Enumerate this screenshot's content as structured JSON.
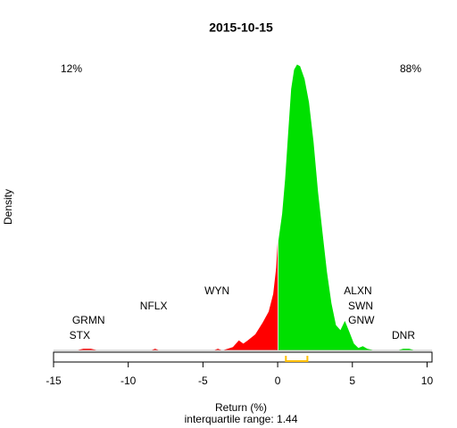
{
  "chart_data": {
    "type": "density",
    "title": "2015-10-15",
    "xlabel": "Return (%)",
    "ylabel": "Density",
    "subtitle": "interquartile range: 1.44",
    "xlim": [
      -15,
      10.33
    ],
    "ylim": [
      0,
      0.35
    ],
    "xticks": [
      -15,
      -10,
      -5,
      0,
      5,
      10
    ],
    "corner_labels": [
      {
        "text": "12%",
        "color": "#ff0000"
      },
      {
        "text": "88%",
        "color": "#009900"
      }
    ],
    "series": [
      {
        "color": "#ff0000",
        "x": [
          -15,
          -13.5,
          -13,
          -12.5,
          -12,
          -8.5,
          -8.2,
          -7.9,
          -4.3,
          -4,
          -3.7,
          -3,
          -2.6,
          -2.3,
          -2,
          -1.5,
          -1,
          -0.6,
          -0.3,
          -0.1,
          0
        ],
        "values": [
          0,
          0,
          0.002,
          0.002,
          0,
          0,
          0.002,
          0,
          0,
          0.002,
          0,
          0.004,
          0.012,
          0.008,
          0.012,
          0.019,
          0.033,
          0.046,
          0.067,
          0.098,
          0.129
        ]
      },
      {
        "color": "#00e000",
        "x": [
          0.05,
          0.3,
          0.5,
          0.7,
          0.9,
          1.1,
          1.3,
          1.5,
          1.8,
          2.1,
          2.4,
          2.7,
          3.0,
          3.3,
          3.6,
          3.9,
          4.2,
          4.5,
          4.8,
          5.1,
          5.4,
          5.7,
          6.0,
          6.5,
          8.0,
          8.4,
          8.8,
          9.2,
          10.33
        ],
        "values": [
          0.13,
          0.162,
          0.204,
          0.257,
          0.31,
          0.333,
          0.339,
          0.337,
          0.322,
          0.294,
          0.247,
          0.188,
          0.14,
          0.093,
          0.056,
          0.03,
          0.024,
          0.035,
          0.022,
          0.008,
          0.003,
          0.005,
          0.002,
          0,
          0,
          0.002,
          0.002,
          0,
          0
        ]
      }
    ],
    "annotations": [
      {
        "text": "GRMN",
        "x": -12.66,
        "y": 0.035
      },
      {
        "text": "STX",
        "x": -13.25,
        "y": 0.017
      },
      {
        "text": "NFLX",
        "x": -8.3,
        "y": 0.052
      },
      {
        "text": "WYN",
        "x": -4.06,
        "y": 0.07
      },
      {
        "text": "ALXN",
        "x": 5.37,
        "y": 0.07
      },
      {
        "text": "SWN",
        "x": 5.55,
        "y": 0.052
      },
      {
        "text": "GNW",
        "x": 5.6,
        "y": 0.035
      },
      {
        "text": "DNR",
        "x": 8.42,
        "y": 0.017
      }
    ],
    "iqr": [
      0.55,
      1.99
    ],
    "iqr_color": "#ffc000"
  }
}
